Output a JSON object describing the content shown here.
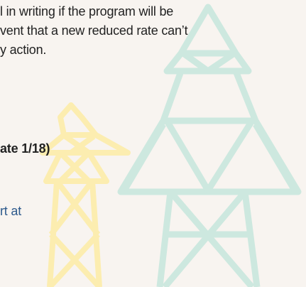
{
  "body": {
    "lines": [
      "l in writing if the program will be",
      "vent that a new reduced rate can’t",
      "y action."
    ],
    "bold_line": "ate 1/18)",
    "link_line": "rt at"
  }
}
